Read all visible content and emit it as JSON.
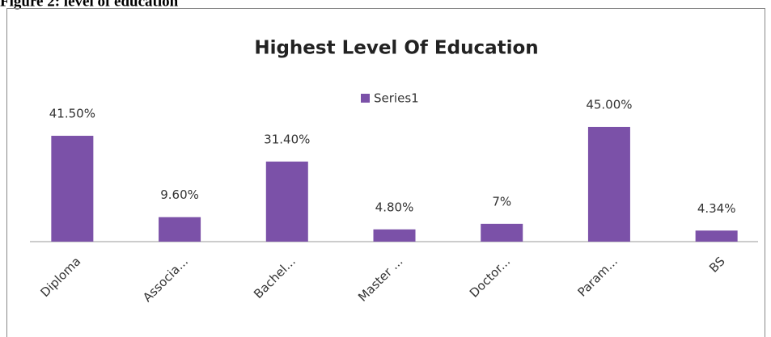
{
  "caption": "Figure 2: level of education",
  "chart_data": {
    "type": "bar",
    "title": "Highest Level Of Education",
    "categories": [
      "Diploma",
      "Associa...",
      "Bachel...",
      "Master ...",
      "Doctor...",
      "Param...",
      "BS"
    ],
    "series": [
      {
        "name": "Series1",
        "color": "#7b51a8",
        "values": [
          41.5,
          9.6,
          31.4,
          4.8,
          7,
          45,
          4.34
        ],
        "value_labels": [
          "41.50%",
          "9.60%",
          "31.40%",
          "4.80%",
          "7%",
          "45.00%",
          "4.34%"
        ]
      }
    ],
    "legend": "top"
  }
}
